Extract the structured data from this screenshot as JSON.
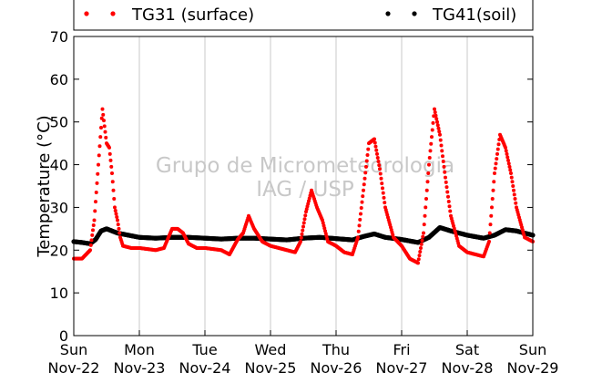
{
  "chart_data": {
    "type": "scatter",
    "title": "",
    "xlabel": "",
    "ylabel": "Temperature (°C)",
    "ylim": [
      0,
      70
    ],
    "yticks": [
      0,
      10,
      20,
      30,
      40,
      50,
      60,
      70
    ],
    "xlim": [
      "2015-11-22 00:00",
      "2015-11-29 00:00"
    ],
    "x_tick_labels": [
      {
        "day": "Sun",
        "date": "Nov-22"
      },
      {
        "day": "Mon",
        "date": "Nov-23"
      },
      {
        "day": "Tue",
        "date": "Nov-24"
      },
      {
        "day": "Wed",
        "date": "Nov-25"
      },
      {
        "day": "Thu",
        "date": "Nov-26"
      },
      {
        "day": "Fri",
        "date": "Nov-27"
      },
      {
        "day": "Sat",
        "date": "Nov-28"
      },
      {
        "day": "Sun",
        "date": "Nov-29"
      }
    ],
    "grid": "vertical",
    "legend_placement": "top",
    "watermark": [
      "Grupo de Micrometeorologia",
      "IAG / USP"
    ],
    "series": [
      {
        "name": "TG31 (surface)",
        "color": "#ff0000",
        "x": [
          "11-22 00:00",
          "11-22 03:00",
          "11-22 06:00",
          "11-22 07:30",
          "11-22 09:00",
          "11-22 10:30",
          "11-22 12:00",
          "11-22 13:00",
          "11-22 14:00",
          "11-22 15:00",
          "11-22 16:00",
          "11-22 17:00",
          "11-22 18:00",
          "11-22 21:00",
          "11-23 00:00",
          "11-23 06:00",
          "11-23 09:00",
          "11-23 12:00",
          "11-23 14:00",
          "11-23 16:00",
          "11-23 18:00",
          "11-23 21:00",
          "11-24 00:00",
          "11-24 06:00",
          "11-24 09:00",
          "11-24 12:00",
          "11-24 14:00",
          "11-24 16:00",
          "11-24 18:00",
          "11-24 21:00",
          "11-25 00:00",
          "11-25 06:00",
          "11-25 09:00",
          "11-25 11:00",
          "11-25 13:00",
          "11-25 15:00",
          "11-25 17:00",
          "11-25 19:00",
          "11-25 21:00",
          "11-26 00:00",
          "11-26 03:00",
          "11-26 06:00",
          "11-26 08:00",
          "11-26 10:00",
          "11-26 12:00",
          "11-26 14:00",
          "11-26 16:00",
          "11-26 18:00",
          "11-26 21:00",
          "11-27 00:00",
          "11-27 03:00",
          "11-27 06:00",
          "11-27 08:00",
          "11-27 10:00",
          "11-27 12:00",
          "11-27 14:00",
          "11-27 16:00",
          "11-27 18:00",
          "11-27 21:00",
          "11-28 00:00",
          "11-28 03:00",
          "11-28 06:00",
          "11-28 08:00",
          "11-28 10:00",
          "11-28 12:00",
          "11-28 14:00",
          "11-28 16:00",
          "11-28 18:00",
          "11-28 21:00",
          "11-29 00:00"
        ],
        "y": [
          18,
          18,
          20,
          27,
          40,
          53,
          45,
          44,
          38,
          30,
          27,
          23,
          21,
          20.5,
          20.5,
          20,
          20.5,
          25,
          25,
          24,
          21.5,
          20.5,
          20.5,
          20,
          19,
          22.5,
          24,
          28,
          25,
          22,
          21,
          20,
          19.5,
          22,
          29,
          34,
          30,
          27,
          22,
          21,
          19.5,
          19,
          23,
          34,
          45,
          46,
          39,
          30,
          23,
          21,
          18,
          17,
          24,
          40,
          53,
          47,
          37,
          28,
          21,
          19.5,
          19,
          18.5,
          22,
          38,
          47,
          44,
          38,
          30,
          23,
          22
        ]
      },
      {
        "name": "TG41(soil)",
        "color": "#000000",
        "x": [
          "11-22 00:00",
          "11-22 03:00",
          "11-22 06:00",
          "11-22 08:00",
          "11-22 10:00",
          "11-22 12:00",
          "11-22 14:00",
          "11-22 16:00",
          "11-22 20:00",
          "11-23 00:00",
          "11-23 06:00",
          "11-23 12:00",
          "11-23 18:00",
          "11-24 00:00",
          "11-24 06:00",
          "11-24 12:00",
          "11-24 18:00",
          "11-25 00:00",
          "11-25 06:00",
          "11-25 12:00",
          "11-25 18:00",
          "11-26 00:00",
          "11-26 06:00",
          "11-26 10:00",
          "11-26 14:00",
          "11-26 18:00",
          "11-27 00:00",
          "11-27 06:00",
          "11-27 10:00",
          "11-27 14:00",
          "11-27 18:00",
          "11-28 00:00",
          "11-28 06:00",
          "11-28 10:00",
          "11-28 14:00",
          "11-28 18:00",
          "11-29 00:00"
        ],
        "y": [
          22,
          21.8,
          21.5,
          22.5,
          24.5,
          25,
          24.5,
          24,
          23.5,
          23,
          22.8,
          23,
          23,
          22.8,
          22.6,
          22.8,
          22.8,
          22.6,
          22.4,
          22.8,
          23,
          22.7,
          22.4,
          23.2,
          23.8,
          23,
          22.5,
          21.8,
          23,
          25.3,
          24.5,
          23.5,
          22.8,
          23.5,
          24.8,
          24.5,
          23.5
        ]
      }
    ]
  }
}
